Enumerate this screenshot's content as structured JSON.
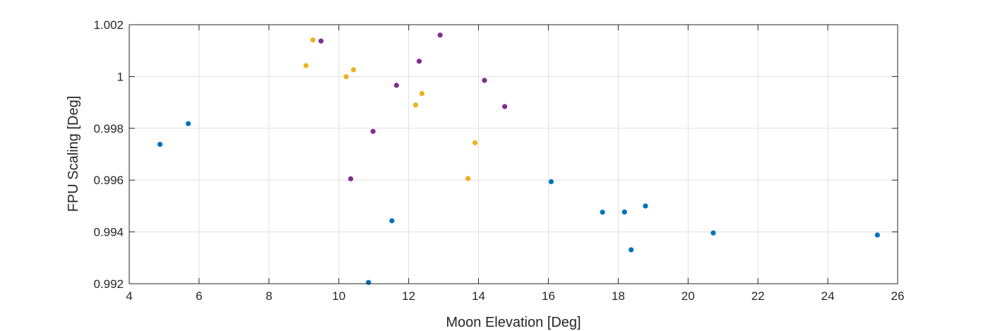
{
  "chart_data": {
    "type": "scatter",
    "xlabel": "Moon Elevation [Deg]",
    "ylabel": "FPU Scaling [Deg]",
    "xlim": [
      4,
      26
    ],
    "ylim": [
      0.992,
      1.002
    ],
    "xticks": [
      4,
      6,
      8,
      10,
      12,
      14,
      16,
      18,
      20,
      22,
      24,
      26
    ],
    "xtick_labels": [
      "4",
      "6",
      "8",
      "10",
      "12",
      "14",
      "16",
      "18",
      "20",
      "22",
      "24",
      "26"
    ],
    "yticks": [
      0.992,
      0.994,
      0.996,
      0.998,
      1.0,
      1.002
    ],
    "ytick_labels": [
      "0.992",
      "0.994",
      "0.996",
      "0.998",
      "1",
      "1.002"
    ],
    "grid": true,
    "series": [
      {
        "color": "#0072BD",
        "points": [
          {
            "x": 4.88,
            "y": 0.99738
          },
          {
            "x": 5.69,
            "y": 0.99818
          },
          {
            "x": 10.85,
            "y": 0.99205
          },
          {
            "x": 11.52,
            "y": 0.99443
          },
          {
            "x": 16.08,
            "y": 0.99594
          },
          {
            "x": 17.55,
            "y": 0.99476
          },
          {
            "x": 18.18,
            "y": 0.99477
          },
          {
            "x": 18.37,
            "y": 0.99331
          },
          {
            "x": 18.78,
            "y": 0.995
          },
          {
            "x": 20.72,
            "y": 0.99396
          },
          {
            "x": 25.42,
            "y": 0.99388
          }
        ]
      },
      {
        "color": "#EDB120",
        "points": [
          {
            "x": 9.06,
            "y": 1.00042
          },
          {
            "x": 9.26,
            "y": 1.00141
          },
          {
            "x": 10.21,
            "y": 0.99999
          },
          {
            "x": 10.42,
            "y": 1.00026
          },
          {
            "x": 12.2,
            "y": 0.9989
          },
          {
            "x": 12.38,
            "y": 0.99934
          },
          {
            "x": 13.7,
            "y": 0.99606
          },
          {
            "x": 13.9,
            "y": 0.99744
          }
        ]
      },
      {
        "color": "#7E2F8E",
        "points": [
          {
            "x": 9.49,
            "y": 1.00137
          },
          {
            "x": 10.34,
            "y": 0.99605
          },
          {
            "x": 10.98,
            "y": 0.99788
          },
          {
            "x": 11.65,
            "y": 0.99966
          },
          {
            "x": 12.3,
            "y": 1.00059
          },
          {
            "x": 12.9,
            "y": 1.0016
          },
          {
            "x": 14.17,
            "y": 0.99985
          },
          {
            "x": 14.75,
            "y": 0.99884
          }
        ]
      }
    ]
  }
}
